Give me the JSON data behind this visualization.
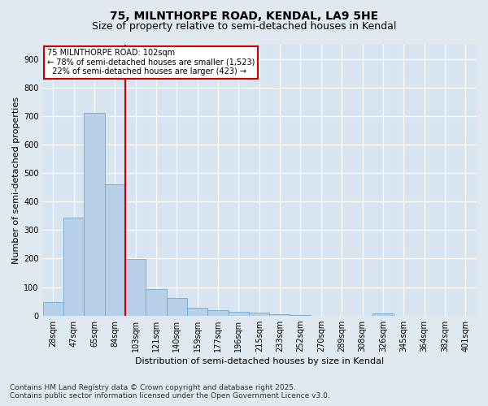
{
  "title": "75, MILNTHORPE ROAD, KENDAL, LA9 5HE",
  "subtitle": "Size of property relative to semi-detached houses in Kendal",
  "xlabel": "Distribution of semi-detached houses by size in Kendal",
  "ylabel": "Number of semi-detached properties",
  "footer_line1": "Contains HM Land Registry data © Crown copyright and database right 2025.",
  "footer_line2": "Contains public sector information licensed under the Open Government Licence v3.0.",
  "categories": [
    "28sqm",
    "47sqm",
    "65sqm",
    "84sqm",
    "103sqm",
    "121sqm",
    "140sqm",
    "159sqm",
    "177sqm",
    "196sqm",
    "215sqm",
    "233sqm",
    "252sqm",
    "270sqm",
    "289sqm",
    "308sqm",
    "326sqm",
    "345sqm",
    "364sqm",
    "382sqm",
    "401sqm"
  ],
  "values": [
    48,
    345,
    712,
    460,
    198,
    93,
    62,
    27,
    20,
    14,
    10,
    4,
    2,
    0,
    0,
    0,
    8,
    0,
    0,
    0,
    0
  ],
  "bar_color": "#b8cfe8",
  "bar_edge_color": "#6fa8d4",
  "vline_color": "#cc0000",
  "annotation_line1": "75 MILNTHORPE ROAD: 102sqm",
  "annotation_line2": "← 78% of semi-detached houses are smaller (1,523)",
  "annotation_line3": "  22% of semi-detached houses are larger (423) →",
  "annotation_box_color": "#ffffff",
  "annotation_box_edge": "#cc0000",
  "ylim": [
    0,
    950
  ],
  "yticks": [
    0,
    100,
    200,
    300,
    400,
    500,
    600,
    700,
    800,
    900
  ],
  "bg_color": "#e0e8f0",
  "plot_bg_color": "#d8e4f0",
  "grid_color": "#ffffff",
  "title_fontsize": 10,
  "subtitle_fontsize": 9,
  "axis_label_fontsize": 8,
  "tick_fontsize": 7,
  "footer_fontsize": 6.5
}
